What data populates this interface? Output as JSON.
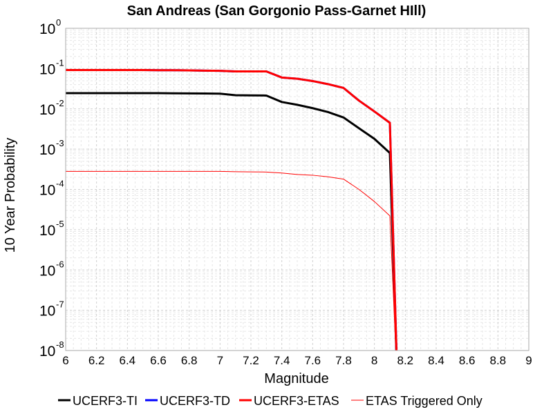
{
  "chart_data": {
    "type": "line",
    "title": "San Andreas (San Gorgonio Pass-Garnet HIll)",
    "xlabel": "Magnitude",
    "ylabel": "10 Year Probability",
    "xlim": [
      6,
      9
    ],
    "ylim": [
      1e-08,
      1
    ],
    "yscale": "log",
    "grid": true,
    "legend_position": "bottom",
    "x_ticks": [
      "6",
      "6.2",
      "6.4",
      "6.6",
      "6.8",
      "7",
      "7.2",
      "7.4",
      "7.6",
      "7.8",
      "8",
      "8.2",
      "8.4",
      "8.6",
      "8.8",
      "9"
    ],
    "y_ticks": [
      {
        "base": "10",
        "exp": "0"
      },
      {
        "base": "10",
        "exp": "-1"
      },
      {
        "base": "10",
        "exp": "-2"
      },
      {
        "base": "10",
        "exp": "-3"
      },
      {
        "base": "10",
        "exp": "-4"
      },
      {
        "base": "10",
        "exp": "-5"
      },
      {
        "base": "10",
        "exp": "-6"
      },
      {
        "base": "10",
        "exp": "-7"
      },
      {
        "base": "10",
        "exp": "-8"
      }
    ],
    "series": [
      {
        "name": "UCERF3-TI",
        "color": "#000000",
        "width": 3,
        "x": [
          6.0,
          6.1,
          6.2,
          6.3,
          6.4,
          6.5,
          6.6,
          6.7,
          6.8,
          6.9,
          7.0,
          7.1,
          7.2,
          7.3,
          7.4,
          7.5,
          7.6,
          7.7,
          7.8,
          7.9,
          8.0,
          8.1,
          8.15
        ],
        "y": [
          0.0245,
          0.0245,
          0.0245,
          0.0245,
          0.0245,
          0.0245,
          0.0245,
          0.0243,
          0.0242,
          0.024,
          0.0238,
          0.0218,
          0.0216,
          0.0214,
          0.0148,
          0.0126,
          0.0104,
          0.0083,
          0.0061,
          0.0033,
          0.0018,
          0.0008,
          1e-09
        ]
      },
      {
        "name": "UCERF3-TD",
        "color": "#0000ff",
        "width": 3,
        "x": [
          6.0,
          6.1,
          6.2,
          6.3,
          6.4,
          6.5,
          6.6,
          6.7,
          6.8,
          6.9,
          7.0,
          7.1,
          7.2,
          7.3,
          7.4,
          7.5,
          7.6,
          7.7,
          7.8,
          7.9,
          8.0,
          8.1,
          8.15
        ],
        "y": [
          0.092,
          0.092,
          0.092,
          0.092,
          0.092,
          0.092,
          0.091,
          0.091,
          0.09,
          0.089,
          0.088,
          0.085,
          0.085,
          0.085,
          0.06,
          0.056,
          0.049,
          0.041,
          0.033,
          0.016,
          0.0086,
          0.0045,
          1e-09
        ]
      },
      {
        "name": "UCERF3-ETAS",
        "color": "#ff0000",
        "width": 3,
        "x": [
          6.0,
          6.1,
          6.2,
          6.3,
          6.4,
          6.5,
          6.6,
          6.7,
          6.8,
          6.9,
          7.0,
          7.1,
          7.2,
          7.3,
          7.4,
          7.5,
          7.6,
          7.7,
          7.8,
          7.9,
          8.0,
          8.1,
          8.15
        ],
        "y": [
          0.092,
          0.092,
          0.092,
          0.092,
          0.092,
          0.092,
          0.091,
          0.091,
          0.09,
          0.089,
          0.088,
          0.085,
          0.085,
          0.085,
          0.06,
          0.056,
          0.049,
          0.041,
          0.033,
          0.016,
          0.0086,
          0.0045,
          1e-09
        ]
      },
      {
        "name": "ETAS Triggered Only",
        "color": "#ff0000",
        "width": 1,
        "x": [
          6.0,
          6.1,
          6.2,
          6.3,
          6.4,
          6.5,
          6.6,
          6.7,
          6.8,
          6.9,
          7.0,
          7.1,
          7.2,
          7.3,
          7.4,
          7.5,
          7.6,
          7.7,
          7.8,
          7.9,
          8.0,
          8.1,
          8.15
        ],
        "y": [
          0.00028,
          0.00028,
          0.00028,
          0.00028,
          0.00028,
          0.00028,
          0.00028,
          0.00028,
          0.00028,
          0.00028,
          0.00028,
          0.000275,
          0.000272,
          0.00027,
          0.000255,
          0.000235,
          0.000225,
          0.000205,
          0.00018,
          0.0001,
          5e-05,
          2.2e-05,
          1e-09
        ]
      }
    ]
  }
}
